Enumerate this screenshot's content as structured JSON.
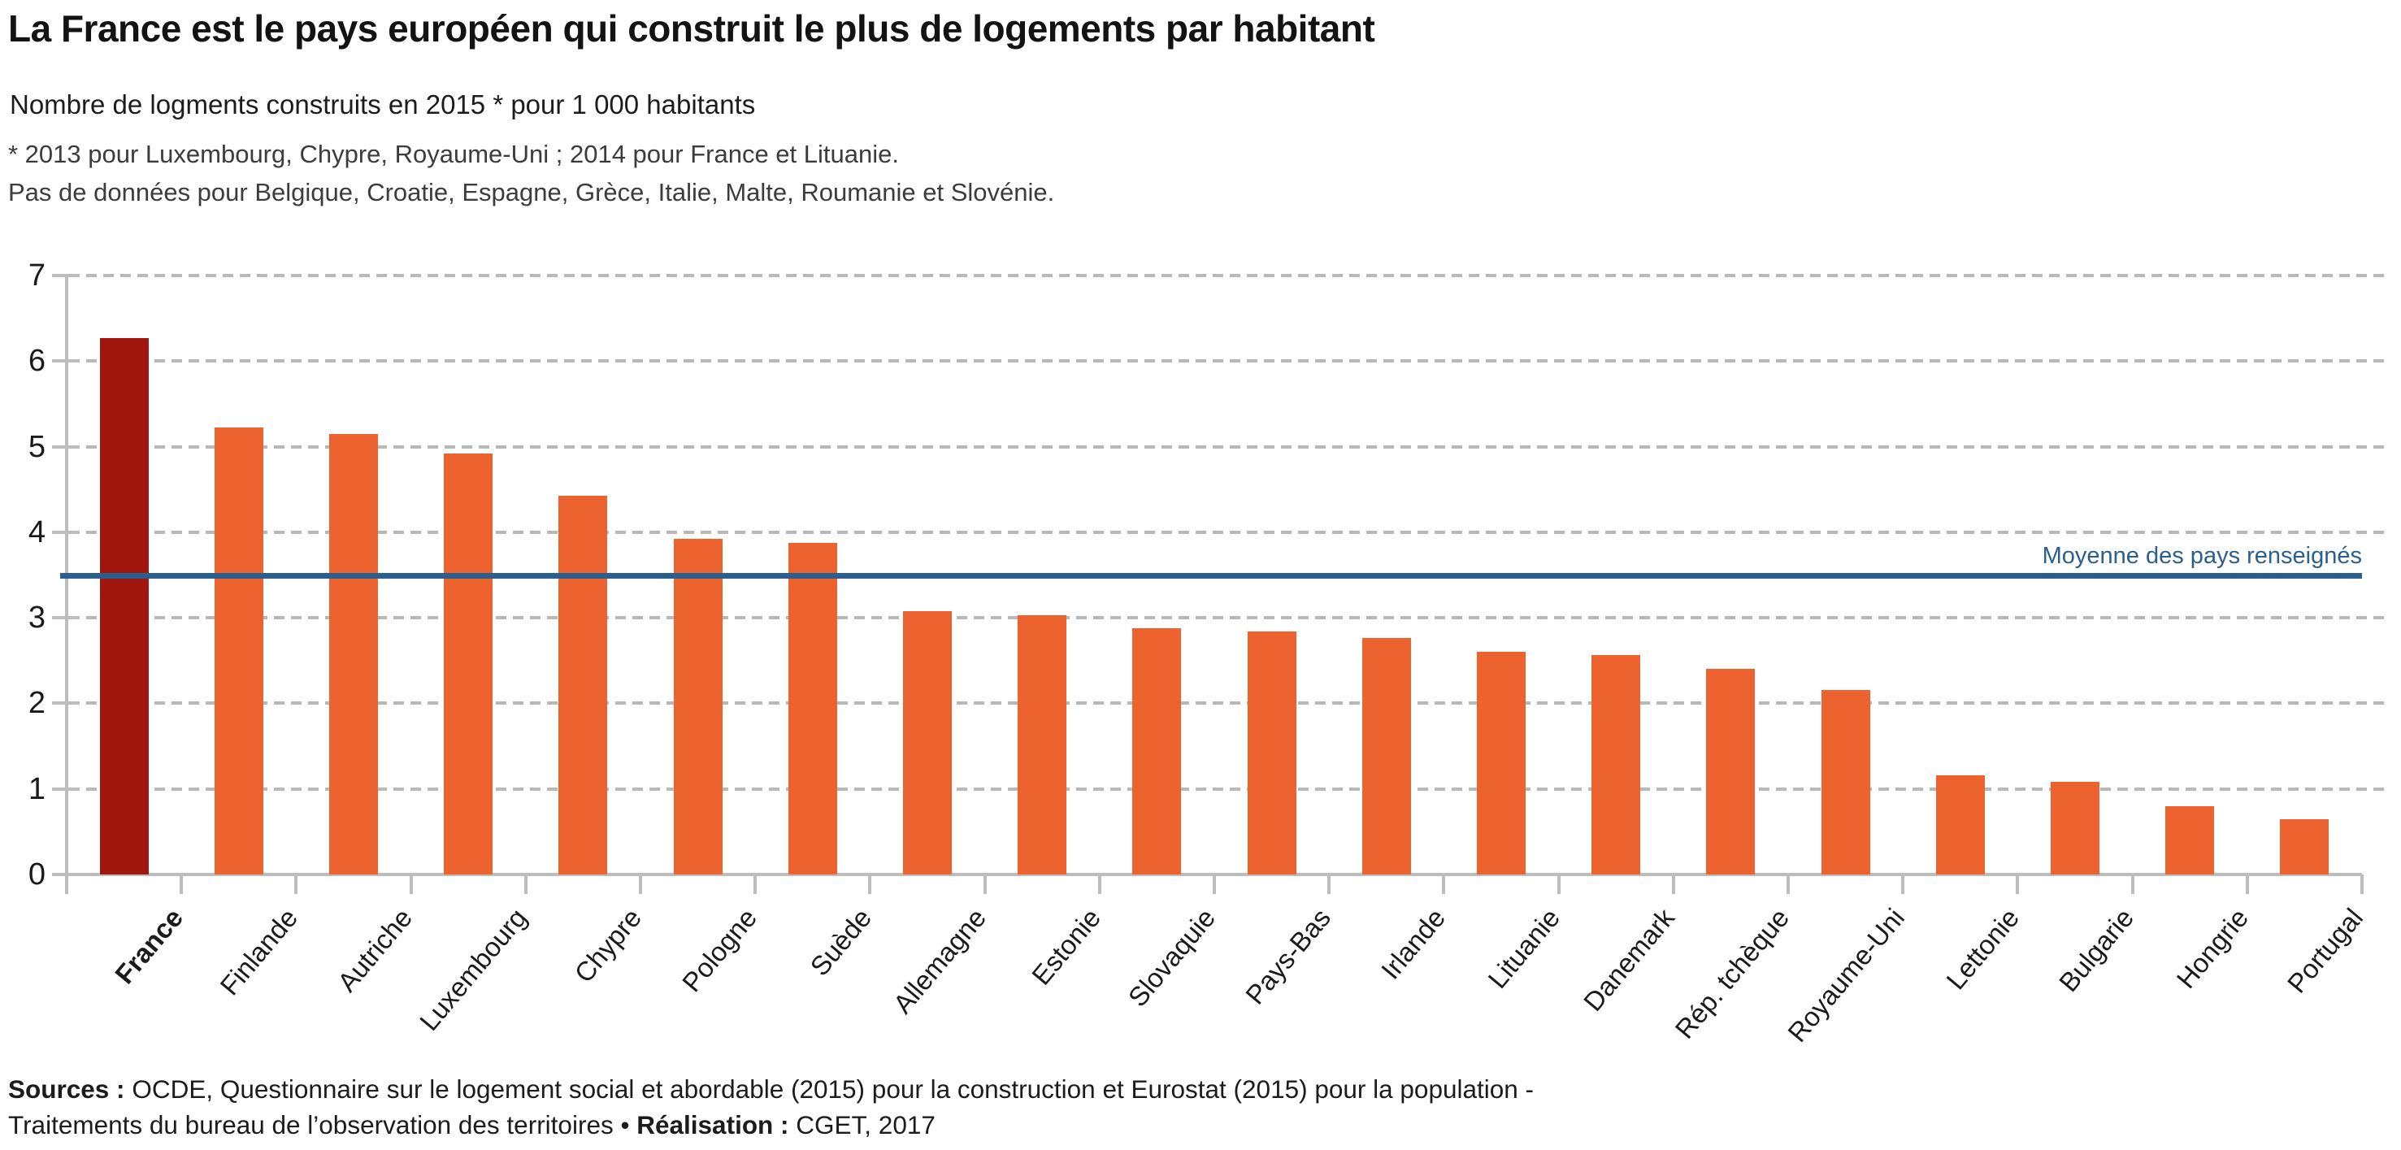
{
  "chart_data": {
    "type": "bar",
    "title": "La France est le pays européen qui construit le plus de logements par habitant",
    "subtitle": "Nombre de logments construits en 2015 * pour 1 000 habitants",
    "footnotes": [
      "* 2013 pour Luxembourg, Chypre, Royaume-Uni ; 2014 pour France et Lituanie.",
      "Pas de données pour Belgique, Croatie, Espagne, Grèce, Italie, Malte, Roumanie et Slovénie."
    ],
    "categories": [
      "France",
      "Finlande",
      "Autriche",
      "Luxembourg",
      "Chypre",
      "Pologne",
      "Suède",
      "Allemagne",
      "Estonie",
      "Slovaquie",
      "Pays-Bas",
      "Irlande",
      "Lituanie",
      "Danemark",
      "Rép. tchèque",
      "Royaume-Uni",
      "Lettonie",
      "Bulgarie",
      "Hongrie",
      "Portugal"
    ],
    "values": [
      6.27,
      5.22,
      5.15,
      4.92,
      4.43,
      3.92,
      3.87,
      3.08,
      3.03,
      2.88,
      2.84,
      2.76,
      2.6,
      2.56,
      2.4,
      2.16,
      1.16,
      1.08,
      0.8,
      0.65
    ],
    "highlight_category": "France",
    "colors": {
      "highlight_bar": "#A21610",
      "bar": "#EC6330",
      "average_line": "#2A5F8E",
      "grid": "#B8B8B8",
      "axis": "#BDBDBD"
    },
    "ylim": [
      0,
      7
    ],
    "yticks": [
      0,
      1,
      2,
      3,
      4,
      5,
      6,
      7
    ],
    "average_line": {
      "value": 3.49,
      "label": "Moyenne des pays renseignés"
    },
    "grid": "horizontal-dashed",
    "legend": "none",
    "xlabel": "",
    "ylabel": ""
  },
  "footer": {
    "sources_label": "Sources :",
    "sources_text": " OCDE, Questionnaire sur le logement social et abordable (2015) pour la construction et Eurostat (2015) pour la population -",
    "line2_prefix": "Traitements du bureau de l’observation des territoires • ",
    "realisation_label": "Réalisation :",
    "realisation_text": " CGET, 2017"
  }
}
